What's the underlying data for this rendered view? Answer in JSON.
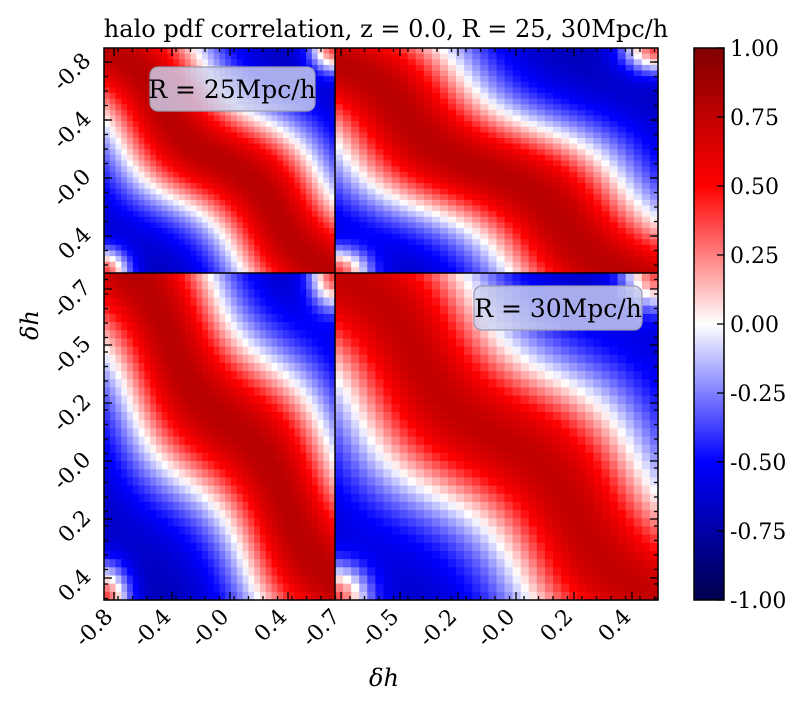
{
  "chart_data": {
    "type": "heatmap",
    "title": "halo pdf correlation, z = 0.0, R = 25, 30Mpc/h",
    "xlabel": "δh",
    "ylabel": "δh",
    "colormap": "seismic",
    "colorbar": {
      "range": [
        -1.0,
        1.0
      ],
      "ticks": [
        "1.00",
        "0.75",
        "0.50",
        "0.25",
        "0.00",
        "-0.25",
        "-0.50",
        "-0.75",
        "-1.00"
      ],
      "tick_values": [
        1.0,
        0.75,
        0.5,
        0.25,
        0.0,
        -0.25,
        -0.5,
        -0.75,
        -1.0
      ]
    },
    "blocks": [
      {
        "name": "R=25 x R=25",
        "row": 0,
        "col": 0,
        "annotation": "R = 25Mpc/h",
        "x_range": [
          -0.8,
          0.7
        ],
        "y_range": [
          -0.8,
          0.7
        ]
      },
      {
        "name": "R=25 x R=30",
        "row": 0,
        "col": 1,
        "annotation": "",
        "x_range": [
          -0.7,
          0.5
        ],
        "y_range": [
          -0.8,
          0.7
        ]
      },
      {
        "name": "R=30 x R=25",
        "row": 1,
        "col": 0,
        "annotation": "",
        "x_range": [
          -0.8,
          0.7
        ],
        "y_range": [
          -0.7,
          0.5
        ]
      },
      {
        "name": "R=30 x R=30",
        "row": 1,
        "col": 1,
        "annotation": "R = 30Mpc/h",
        "x_range": [
          -0.7,
          0.5
        ],
        "y_range": [
          -0.7,
          0.5
        ]
      }
    ],
    "grid_cells_per_block": 40,
    "x_tick_labels_left": [
      "-0.8",
      "-0.4",
      "-0.0",
      "0.4",
      "-0.7"
    ],
    "x_tick_labels_right": [
      "-0.5",
      "-0.2",
      "-0.0",
      "0.2",
      "0.4"
    ],
    "y_tick_labels_top": [
      "-0.8",
      "-0.4",
      "-0.0",
      "0.4"
    ],
    "y_tick_labels_bottom": [
      "-0.7",
      "-0.5",
      "-0.2",
      "-0.0",
      "0.2",
      "0.4"
    ]
  },
  "colors": {
    "dark_red": "#7f0000",
    "red": "#ff0000",
    "white": "#ffffff",
    "blue": "#0000ff",
    "dark_blue": "#00004d"
  }
}
